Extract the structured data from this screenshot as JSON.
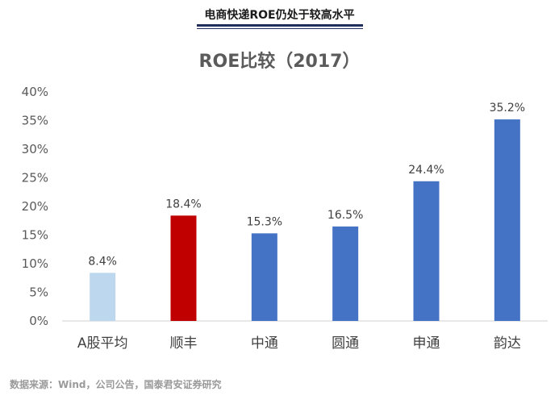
{
  "header": {
    "title": "电商快递ROE仍处于较高水平"
  },
  "footer": {
    "source": "数据来源：Wind，公司公告，国泰君安证券研究"
  },
  "chart_data": {
    "type": "bar",
    "title": "ROE比较（2017）",
    "categories": [
      "A股平均",
      "顺丰",
      "中通",
      "圆通",
      "申通",
      "韵达"
    ],
    "values": [
      8.4,
      18.4,
      15.3,
      16.5,
      24.4,
      35.2
    ],
    "data_labels": [
      "8.4%",
      "18.4%",
      "15.3%",
      "16.5%",
      "24.4%",
      "35.2%"
    ],
    "colors": [
      "#bdd7ee",
      "#c00000",
      "#4472c4",
      "#4472c4",
      "#4472c4",
      "#4472c4"
    ],
    "ylim": [
      0,
      40
    ],
    "yticks": [
      "0%",
      "5%",
      "10%",
      "15%",
      "20%",
      "25%",
      "30%",
      "35%",
      "40%"
    ],
    "xlabel": "",
    "ylabel": "",
    "grid": false,
    "legend": "none"
  }
}
